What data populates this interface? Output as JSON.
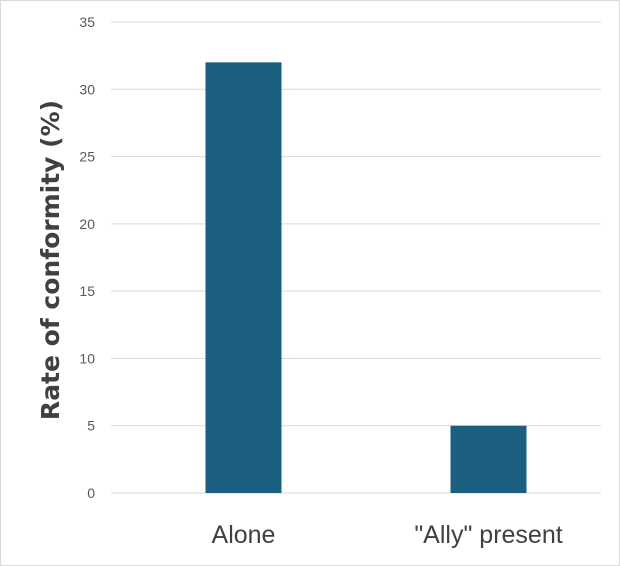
{
  "chart_data": {
    "type": "bar",
    "title": "",
    "xlabel": "",
    "ylabel": "Rate of conformity (%)",
    "categories": [
      "Alone",
      "\"Ally\" present"
    ],
    "values": [
      32,
      5
    ],
    "ylim": [
      0,
      35
    ],
    "yticks": [
      0,
      5,
      10,
      15,
      20,
      25,
      30,
      35
    ],
    "grid": true,
    "legend": "none",
    "bar_color": "#1a5f7f",
    "grid_color": "#d9d9d9"
  }
}
